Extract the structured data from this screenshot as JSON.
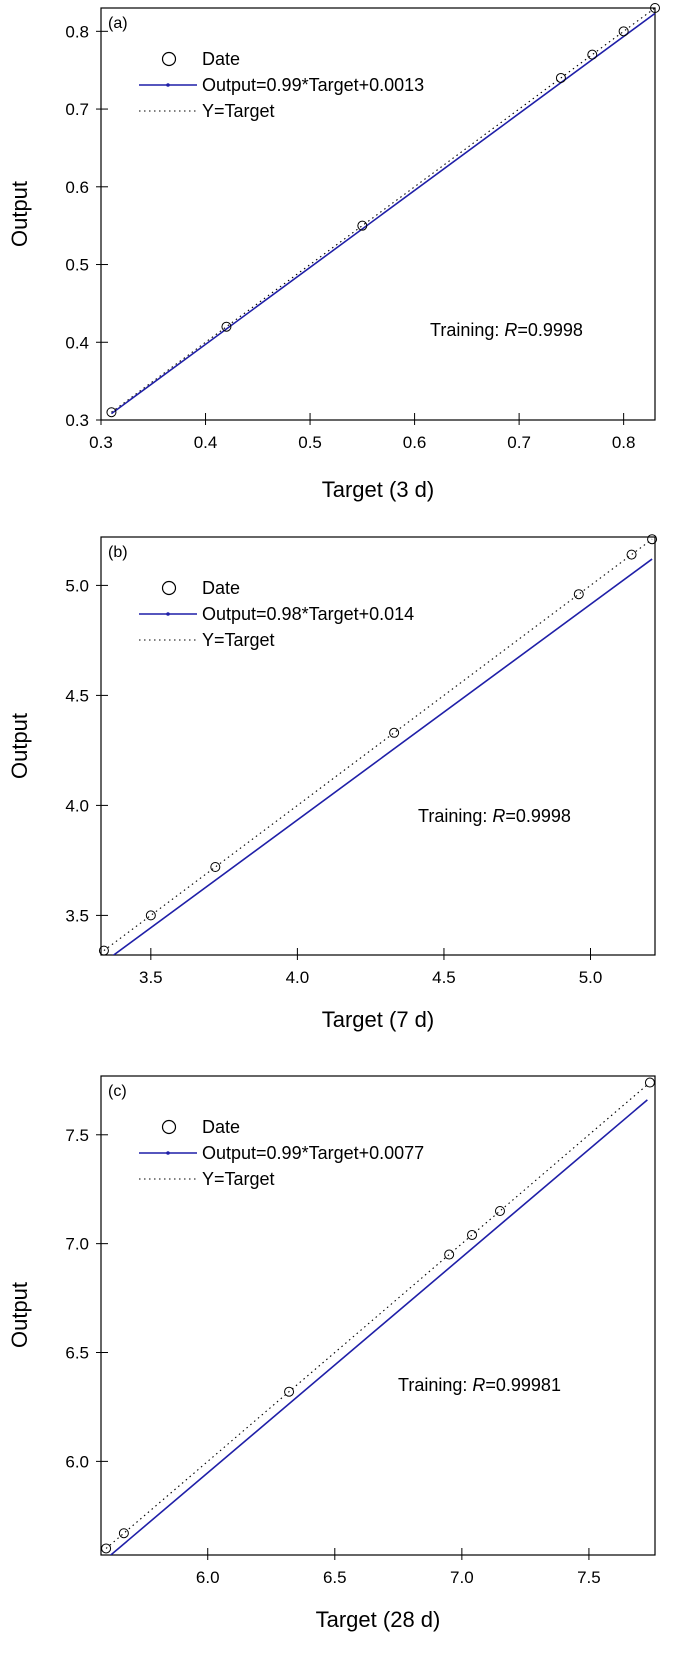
{
  "chart_data": [
    {
      "type": "scatter",
      "panel_label": "(a)",
      "xlabel": "Target (3 d)",
      "ylabel": "Output",
      "xlim": [
        0.3,
        0.83
      ],
      "ylim": [
        0.3,
        0.83
      ],
      "xticks": [
        "0.3",
        "0.4",
        "0.5",
        "0.6",
        "0.7",
        "0.8"
      ],
      "yticks": [
        "0.3",
        "0.4",
        "0.5",
        "0.6",
        "0.7",
        "0.8"
      ],
      "series": [
        {
          "name": "Date",
          "x": [
            0.31,
            0.42,
            0.55,
            0.74,
            0.77,
            0.8,
            0.83
          ],
          "y": [
            0.31,
            0.42,
            0.55,
            0.74,
            0.77,
            0.8,
            0.83
          ]
        },
        {
          "name": "Output=0.99*Target+0.0013",
          "slope": 0.99,
          "intercept": 0.0013,
          "x_range": [
            0.31,
            0.83
          ]
        },
        {
          "name": "Y=Target",
          "slope": 1,
          "intercept": 0,
          "x_range": [
            0.31,
            0.83
          ]
        }
      ],
      "annotation_prefix": "Training: ",
      "annotation_var": "R",
      "annotation_value": "=0.9998",
      "legend_position": "top-left",
      "grid": false
    },
    {
      "type": "scatter",
      "panel_label": "(b)",
      "xlabel": "Target (7 d)",
      "ylabel": "Output",
      "xlim": [
        3.33,
        5.22
      ],
      "ylim": [
        3.32,
        5.22
      ],
      "xticks": [
        "3.5",
        "4.0",
        "4.5",
        "5.0"
      ],
      "yticks": [
        "3.5",
        "4.0",
        "4.5",
        "5.0"
      ],
      "series": [
        {
          "name": "Date",
          "x": [
            3.34,
            3.5,
            3.72,
            4.33,
            4.96,
            5.14,
            5.21
          ],
          "y": [
            3.34,
            3.5,
            3.72,
            4.33,
            4.96,
            5.14,
            5.21
          ]
        },
        {
          "name": "Output=0.98*Target+0.014",
          "slope": 0.98,
          "intercept": 0.014,
          "x_range": [
            3.34,
            5.21
          ]
        },
        {
          "name": "Y=Target",
          "slope": 1,
          "intercept": 0,
          "x_range": [
            3.34,
            5.21
          ]
        }
      ],
      "annotation_prefix": "Training: ",
      "annotation_var": "R",
      "annotation_value": "=0.9998",
      "legend_position": "top-left",
      "grid": false
    },
    {
      "type": "scatter",
      "panel_label": "(c)",
      "xlabel": "Target (28 d)",
      "ylabel": "Output",
      "xlim": [
        5.58,
        7.76
      ],
      "ylim": [
        5.57,
        7.77
      ],
      "xticks": [
        "6.0",
        "6.5",
        "7.0",
        "7.5"
      ],
      "yticks": [
        "6.0",
        "6.5",
        "7.0",
        "7.5"
      ],
      "series": [
        {
          "name": "Date",
          "x": [
            5.6,
            5.67,
            6.32,
            6.95,
            7.04,
            7.15,
            7.74
          ],
          "y": [
            5.6,
            5.67,
            6.32,
            6.95,
            7.04,
            7.15,
            7.74
          ]
        },
        {
          "name": "Output=0.99*Target+0.0077",
          "slope": 0.99,
          "intercept": 0.0077,
          "x_range": [
            5.6,
            7.73
          ]
        },
        {
          "name": "Y=Target",
          "slope": 1,
          "intercept": 0,
          "x_range": [
            5.6,
            7.73
          ]
        }
      ],
      "annotation_prefix": "Training: ",
      "annotation_var": "R",
      "annotation_value": "=0.99981",
      "legend_position": "top-left",
      "grid": false
    }
  ],
  "colors": {
    "fit_line": "#1f1fa8",
    "target_line": "#000000",
    "marker": "#000000"
  }
}
